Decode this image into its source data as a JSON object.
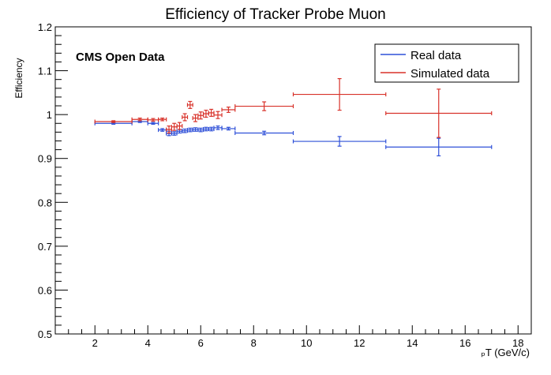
{
  "chart_data": {
    "type": "scatter",
    "title": "Efficiency of Tracker Probe Muon",
    "annotation": "CMS Open Data",
    "xlabel": "ₚT (GeV/c)",
    "ylabel": "Efficiency",
    "xlim": [
      0.5,
      18.5
    ],
    "ylim": [
      0.5,
      1.2
    ],
    "xticks": [
      "2",
      "4",
      "6",
      "8",
      "10",
      "12",
      "14",
      "16",
      "18"
    ],
    "yticks": [
      "0.5",
      "0.6",
      "0.7",
      "0.8",
      "0.9",
      "1",
      "1.1",
      "1.2"
    ],
    "legend_position": "top-right",
    "series": [
      {
        "name": "Real data",
        "color": "#2f50d8",
        "points": [
          {
            "xlo": 2.0,
            "xhi": 3.4,
            "y": 0.98,
            "ey": 0.002
          },
          {
            "xlo": 3.4,
            "xhi": 4.0,
            "y": 0.984,
            "ey": 0.002
          },
          {
            "xlo": 4.0,
            "xhi": 4.4,
            "y": 0.98,
            "ey": 0.002
          },
          {
            "xlo": 4.4,
            "xhi": 4.7,
            "y": 0.965,
            "ey": 0.003
          },
          {
            "xlo": 4.7,
            "xhi": 4.9,
            "y": 0.957,
            "ey": 0.005
          },
          {
            "xlo": 4.9,
            "xhi": 5.1,
            "y": 0.957,
            "ey": 0.004
          },
          {
            "xlo": 5.1,
            "xhi": 5.3,
            "y": 0.962,
            "ey": 0.004
          },
          {
            "xlo": 5.3,
            "xhi": 5.5,
            "y": 0.963,
            "ey": 0.004
          },
          {
            "xlo": 5.5,
            "xhi": 5.7,
            "y": 0.965,
            "ey": 0.004
          },
          {
            "xlo": 5.7,
            "xhi": 5.9,
            "y": 0.966,
            "ey": 0.004
          },
          {
            "xlo": 5.9,
            "xhi": 6.1,
            "y": 0.965,
            "ey": 0.004
          },
          {
            "xlo": 6.1,
            "xhi": 6.3,
            "y": 0.967,
            "ey": 0.004
          },
          {
            "xlo": 6.3,
            "xhi": 6.5,
            "y": 0.967,
            "ey": 0.004
          },
          {
            "xlo": 6.5,
            "xhi": 6.8,
            "y": 0.97,
            "ey": 0.004
          },
          {
            "xlo": 6.8,
            "xhi": 7.3,
            "y": 0.968,
            "ey": 0.003
          },
          {
            "xlo": 7.3,
            "xhi": 9.5,
            "y": 0.958,
            "ey": 0.004
          },
          {
            "xlo": 9.5,
            "xhi": 13.0,
            "y": 0.939,
            "ey": 0.011
          },
          {
            "xlo": 13.0,
            "xhi": 17.0,
            "y": 0.926,
            "ey": 0.02
          }
        ]
      },
      {
        "name": "Simulated data",
        "color": "#d8322a",
        "points": [
          {
            "xlo": 2.0,
            "xhi": 3.4,
            "y": 0.984,
            "ey": 0.002
          },
          {
            "xlo": 3.4,
            "xhi": 4.0,
            "y": 0.989,
            "ey": 0.003
          },
          {
            "xlo": 4.0,
            "xhi": 4.4,
            "y": 0.988,
            "ey": 0.003
          },
          {
            "xlo": 4.4,
            "xhi": 4.7,
            "y": 0.989,
            "ey": 0.003
          },
          {
            "xlo": 4.7,
            "xhi": 4.9,
            "y": 0.966,
            "ey": 0.008
          },
          {
            "xlo": 4.9,
            "xhi": 5.1,
            "y": 0.972,
            "ey": 0.008
          },
          {
            "xlo": 5.1,
            "xhi": 5.3,
            "y": 0.974,
            "ey": 0.008
          },
          {
            "xlo": 5.3,
            "xhi": 5.5,
            "y": 0.994,
            "ey": 0.008
          },
          {
            "xlo": 5.5,
            "xhi": 5.7,
            "y": 1.022,
            "ey": 0.008
          },
          {
            "xlo": 5.7,
            "xhi": 5.9,
            "y": 0.992,
            "ey": 0.008
          },
          {
            "xlo": 5.9,
            "xhi": 6.1,
            "y": 0.998,
            "ey": 0.008
          },
          {
            "xlo": 6.1,
            "xhi": 6.3,
            "y": 1.002,
            "ey": 0.008
          },
          {
            "xlo": 6.3,
            "xhi": 6.5,
            "y": 1.004,
            "ey": 0.008
          },
          {
            "xlo": 6.5,
            "xhi": 6.8,
            "y": 0.999,
            "ey": 0.008
          },
          {
            "xlo": 6.8,
            "xhi": 7.3,
            "y": 1.011,
            "ey": 0.006
          },
          {
            "xlo": 7.3,
            "xhi": 9.5,
            "y": 1.019,
            "ey": 0.01
          },
          {
            "xlo": 9.5,
            "xhi": 13.0,
            "y": 1.046,
            "ey": 0.036
          },
          {
            "xlo": 13.0,
            "xhi": 17.0,
            "y": 1.003,
            "ey": 0.055
          }
        ]
      }
    ]
  }
}
